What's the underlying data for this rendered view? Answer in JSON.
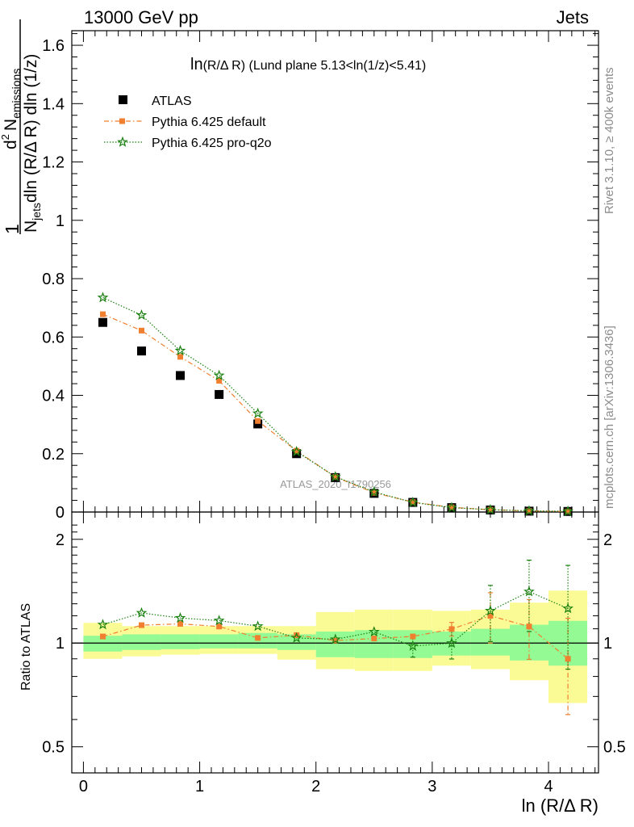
{
  "header": {
    "left": "13000 GeV pp",
    "right": "Jets"
  },
  "side_labels": {
    "rivet": "Rivet 3.1.10, ≥ 400k events",
    "mcplots": "mcplots.cern.ch [arXiv:1306.3436]"
  },
  "colors": {
    "data": "#000000",
    "default": "#f07f2f",
    "pro_q2o": "#1a8010",
    "band_inner": "#94fa94",
    "band_outer": "#fbfb96"
  },
  "chart_data": [
    {
      "type": "scatter",
      "title": "ln(R/Δ R) (Lund plane 5.13<ln(1/z)<5.41)",
      "title_main": "ln",
      "title_rest": "(R/Δ R) (Lund plane 5.13<ln(1/z)<5.41)",
      "watermark": "ATLAS_2020_I1790256",
      "ylabel_parts": {
        "one": "1",
        "n": "N",
        "jets": "jets",
        "denom_rest": "dln (R/Δ R) dln (1/z)",
        "d2": "d",
        "two": "2",
        "num_n": "N",
        "emissions": "emissions"
      },
      "xlim": [
        -0.1,
        4.43
      ],
      "ylim": [
        0,
        1.65
      ],
      "yticks": [
        0,
        0.2,
        0.4,
        0.6,
        0.8,
        1,
        1.2,
        1.4,
        1.6
      ],
      "ytick_labels": [
        "0",
        "0.2",
        "0.4",
        "0.6",
        "0.8",
        "1",
        "1.2",
        "1.4",
        "1.6"
      ],
      "legend": [
        "ATLAS",
        "Pythia 6.425 default",
        "Pythia 6.425 pro-q2o"
      ],
      "legend_position": "top-left",
      "x": [
        0.167,
        0.5,
        0.833,
        1.167,
        1.5,
        1.833,
        2.167,
        2.5,
        2.833,
        3.167,
        3.5,
        3.833,
        4.167
      ],
      "series": [
        {
          "name": "ATLAS",
          "values": [
            0.65,
            0.552,
            0.468,
            0.403,
            0.302,
            0.2,
            0.118,
            0.064,
            0.033,
            0.015,
            0.007,
            0.003,
            0.002
          ]
        },
        {
          "name": "Pythia 6.425 default",
          "values": [
            0.678,
            0.622,
            0.532,
            0.45,
            0.312,
            0.21,
            0.12,
            0.066,
            0.034,
            0.016,
            0.008,
            0.0035,
            0.0018
          ]
        },
        {
          "name": "Pythia 6.425 pro-q2o",
          "values": [
            0.735,
            0.675,
            0.553,
            0.468,
            0.338,
            0.207,
            0.121,
            0.069,
            0.033,
            0.015,
            0.008,
            0.004,
            0.0025
          ]
        }
      ]
    },
    {
      "type": "scatter",
      "title": "",
      "xlabel": "ln (R/Δ R)",
      "ylabel": "Ratio to ATLAS",
      "xlim": [
        -0.1,
        4.43
      ],
      "ylim": [
        0.42,
        2.4
      ],
      "log_y": true,
      "xticks": [
        0,
        1,
        2,
        3,
        4
      ],
      "xtick_labels": [
        "0",
        "1",
        "2",
        "3",
        "4"
      ],
      "yticks": [
        0.5,
        1,
        2
      ],
      "ytick_labels": [
        "0.5",
        "1",
        "2"
      ],
      "bin_edges": [
        0.0,
        0.333,
        0.667,
        1.0,
        1.333,
        1.667,
        2.0,
        2.333,
        2.667,
        3.0,
        3.333,
        3.667,
        4.0,
        4.333
      ],
      "band_inner": [
        [
          0.945,
          1.05
        ],
        [
          0.955,
          1.06
        ],
        [
          0.96,
          1.06
        ],
        [
          0.965,
          1.06
        ],
        [
          0.965,
          1.07
        ],
        [
          0.955,
          1.06
        ],
        [
          0.91,
          1.08
        ],
        [
          0.905,
          1.09
        ],
        [
          0.905,
          1.09
        ],
        [
          0.92,
          1.08
        ],
        [
          0.92,
          1.1
        ],
        [
          0.89,
          1.13
        ],
        [
          0.86,
          1.16
        ]
      ],
      "band_outer": [
        [
          0.9,
          1.145
        ],
        [
          0.915,
          1.12
        ],
        [
          0.925,
          1.12
        ],
        [
          0.93,
          1.12
        ],
        [
          0.93,
          1.12
        ],
        [
          0.895,
          1.12
        ],
        [
          0.84,
          1.23
        ],
        [
          0.83,
          1.25
        ],
        [
          0.83,
          1.25
        ],
        [
          0.86,
          1.24
        ],
        [
          0.84,
          1.25
        ],
        [
          0.78,
          1.31
        ],
        [
          0.67,
          1.42
        ]
      ],
      "series": [
        {
          "name": "Pythia 6.425 default",
          "values": [
            1.045,
            1.127,
            1.137,
            1.117,
            1.035,
            1.054,
            1.017,
            1.031,
            1.045,
            1.098,
            1.2,
            1.117,
            0.9
          ],
          "err": [
            0.0,
            0.0,
            0.0,
            0.0,
            0.0,
            0.0,
            0.0,
            0.0,
            0.0,
            0.05,
            0.2,
            0.22,
            0.28
          ]
        },
        {
          "name": "Pythia 6.425 pro-q2o",
          "values": [
            1.131,
            1.223,
            1.182,
            1.162,
            1.119,
            1.035,
            1.025,
            1.078,
            0.98,
            0.999,
            1.24,
            1.41,
            1.26
          ],
          "err": [
            0.0,
            0.0,
            0.0,
            0.0,
            0.0,
            0.0,
            0.0,
            0.0,
            0.07,
            0.1,
            0.23,
            0.33,
            0.42
          ]
        }
      ]
    }
  ]
}
